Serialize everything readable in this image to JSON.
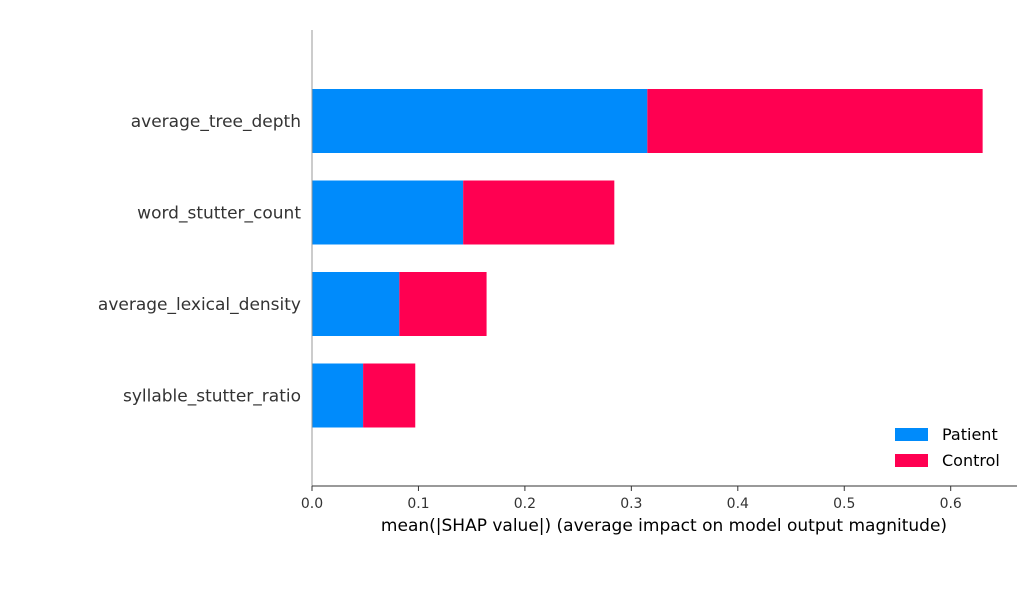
{
  "chart_data": {
    "type": "bar",
    "orientation": "horizontal",
    "stacked": true,
    "title": "",
    "xlabel": "mean(|SHAP value|) (average impact on model output magnitude)",
    "ylabel": "",
    "xlim": [
      0,
      0.66
    ],
    "xticks": [
      0.0,
      0.1,
      0.2,
      0.3,
      0.4,
      0.5,
      0.6
    ],
    "xtick_labels": [
      "0.0",
      "0.1",
      "0.2",
      "0.3",
      "0.4",
      "0.5",
      "0.6"
    ],
    "categories": [
      "average_tree_depth",
      "word_stutter_count",
      "average_lexical_density",
      "syllable_stutter_ratio"
    ],
    "series": [
      {
        "name": "Patient",
        "color": "#008bfb",
        "values": [
          0.315,
          0.142,
          0.082,
          0.048
        ]
      },
      {
        "name": "Control",
        "color": "#ff0051",
        "values": [
          0.315,
          0.142,
          0.082,
          0.049
        ]
      }
    ],
    "legend_position": "lower-right",
    "grid": false
  }
}
